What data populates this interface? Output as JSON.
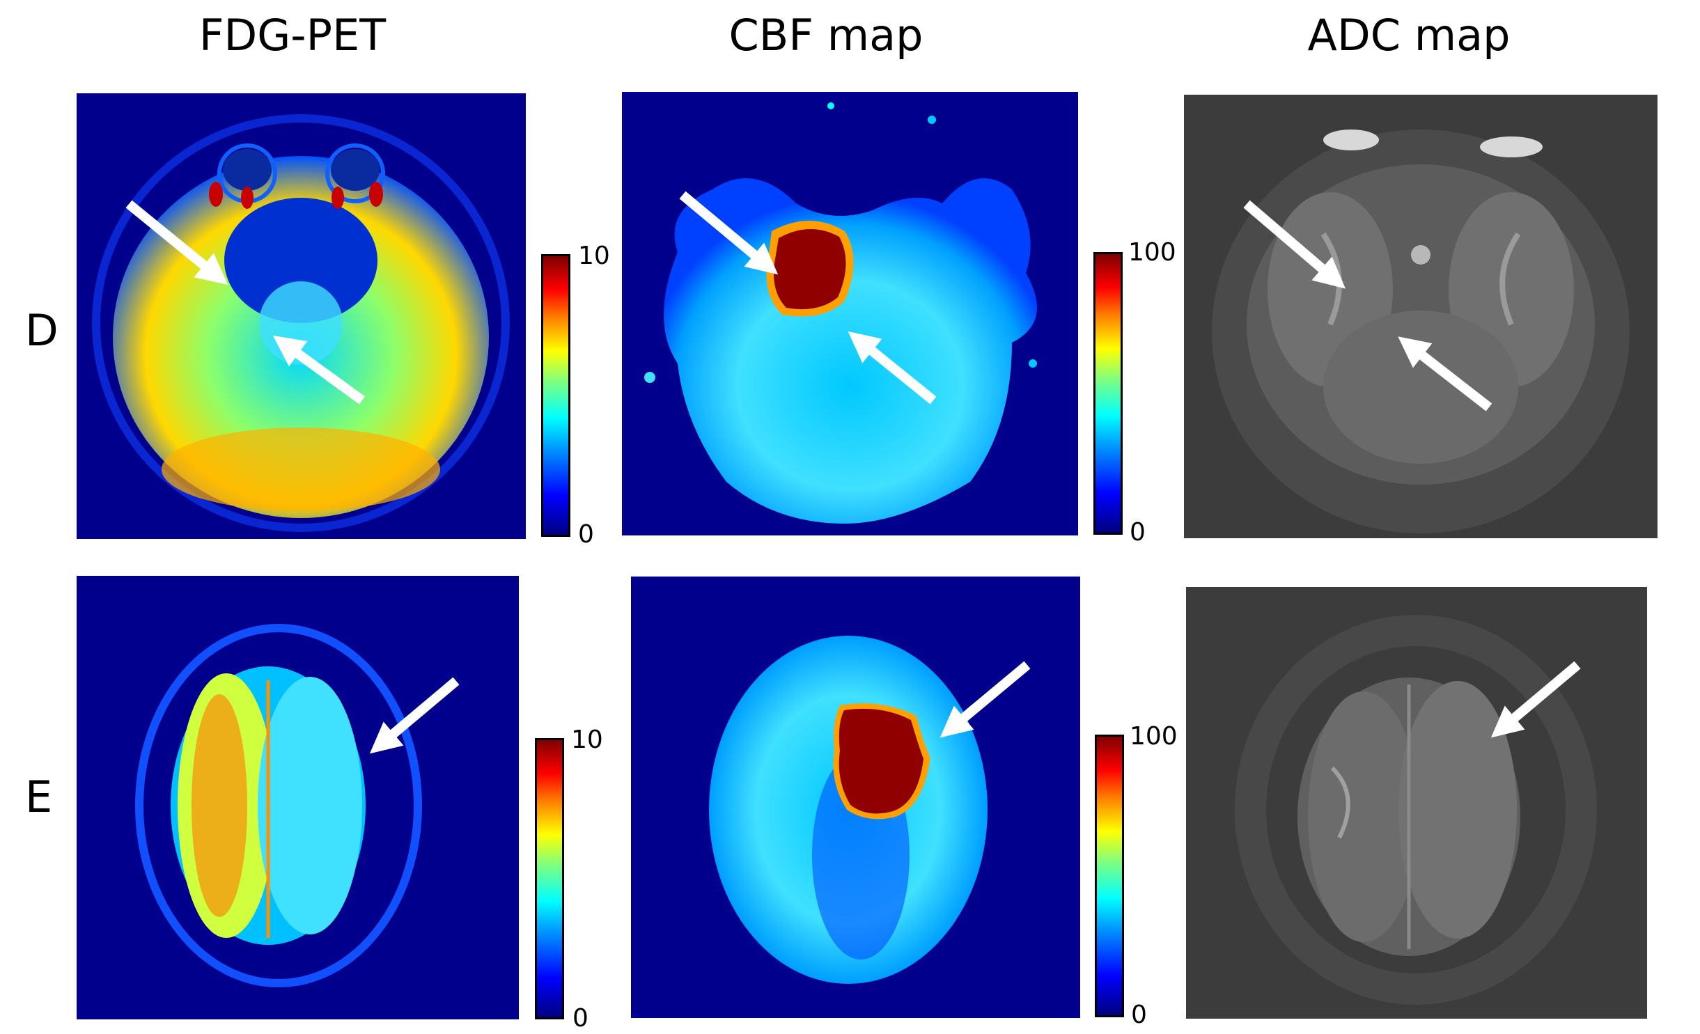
{
  "columns": {
    "pet": "FDG-PET",
    "cbf": "CBF map",
    "adc": "ADC map"
  },
  "rows": {
    "d": "D",
    "e": "E"
  },
  "colorbars": {
    "pet_max": "10",
    "pet_min": "0",
    "cbf_max": "100",
    "cbf_min": "0"
  }
}
